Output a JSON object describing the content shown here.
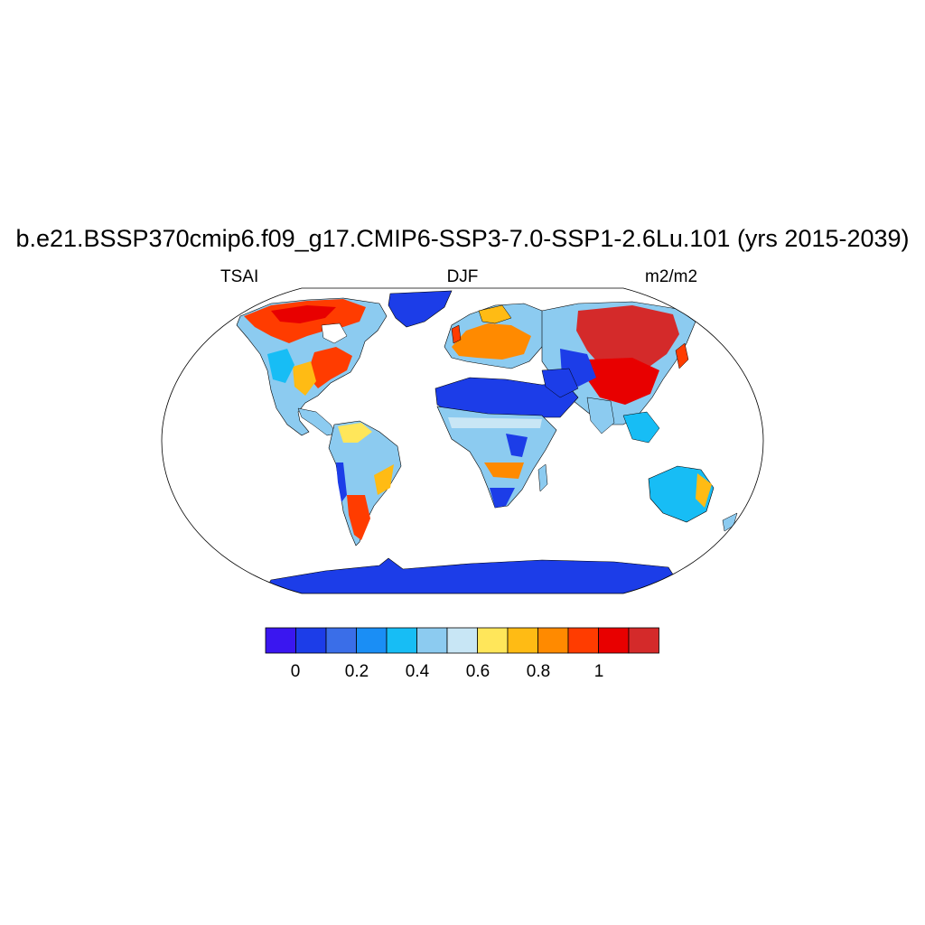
{
  "title": "b.e21.BSSP370cmip6.f09_g17.CMIP6-SSP3-7.0-SSP1-2.6Lu.101 (yrs 2015-2039)",
  "left_label": "TSAI",
  "center_label": "DJF",
  "right_label": "m2/m2",
  "colorbar": {
    "colors": [
      "#3a16f0",
      "#1c3de8",
      "#3a6ee8",
      "#1a8ef5",
      "#17bdf5",
      "#8ccbf0",
      "#c8e6f5",
      "#ffe65a",
      "#ffbb14",
      "#ff8a00",
      "#ff3c00",
      "#e80000",
      "#d42a2a"
    ],
    "tick_labels": [
      "0",
      "0.2",
      "0.4",
      "0.6",
      "0.8",
      "1"
    ]
  },
  "map": {
    "projection": "Robinson",
    "ocean_color": "#ffffff",
    "outline_color": "#000000"
  }
}
